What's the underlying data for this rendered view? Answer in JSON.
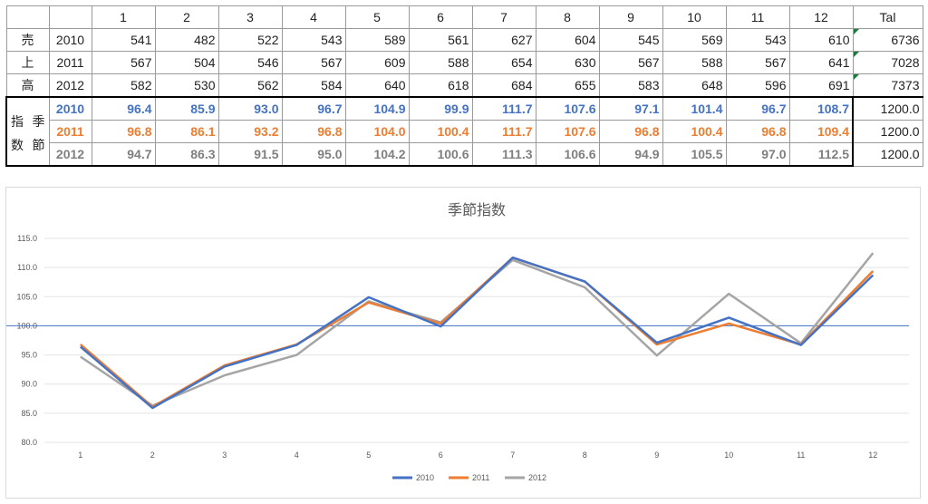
{
  "table": {
    "header": [
      "",
      "",
      "1",
      "2",
      "3",
      "4",
      "5",
      "6",
      "7",
      "8",
      "9",
      "10",
      "11",
      "12",
      "Tal"
    ],
    "sales_label_chars": [
      "売",
      "上",
      "高"
    ],
    "index_label": {
      "top": [
        "指",
        "季"
      ],
      "bottom": [
        "数",
        "節"
      ]
    },
    "sales_rows": [
      {
        "year": "2010",
        "values": [
          "541",
          "482",
          "522",
          "543",
          "589",
          "561",
          "627",
          "604",
          "545",
          "569",
          "543",
          "610"
        ],
        "total": "6736"
      },
      {
        "year": "2011",
        "values": [
          "567",
          "504",
          "546",
          "567",
          "609",
          "588",
          "654",
          "630",
          "567",
          "588",
          "567",
          "641"
        ],
        "total": "7028"
      },
      {
        "year": "2012",
        "values": [
          "582",
          "530",
          "562",
          "584",
          "640",
          "618",
          "684",
          "655",
          "583",
          "648",
          "596",
          "691"
        ],
        "total": "7373"
      }
    ],
    "index_rows": [
      {
        "year": "2010",
        "values": [
          "96.4",
          "85.9",
          "93.0",
          "96.7",
          "104.9",
          "99.9",
          "111.7",
          "107.6",
          "97.1",
          "101.4",
          "96.7",
          "108.7"
        ],
        "total": "1200.0"
      },
      {
        "year": "2011",
        "values": [
          "96.8",
          "86.1",
          "93.2",
          "96.8",
          "104.0",
          "100.4",
          "111.7",
          "107.6",
          "96.8",
          "100.4",
          "96.8",
          "109.4"
        ],
        "total": "1200.0"
      },
      {
        "year": "2012",
        "values": [
          "94.7",
          "86.3",
          "91.5",
          "95.0",
          "104.2",
          "100.6",
          "111.3",
          "106.6",
          "94.9",
          "105.5",
          "97.0",
          "112.5"
        ],
        "total": "1200.0"
      }
    ]
  },
  "chart_data": {
    "type": "line",
    "title": "季節指数",
    "categories": [
      "1",
      "2",
      "3",
      "4",
      "5",
      "6",
      "7",
      "8",
      "9",
      "10",
      "11",
      "12"
    ],
    "series": [
      {
        "name": "2010",
        "color": "#4472c4",
        "values": [
          96.4,
          85.9,
          93.0,
          96.7,
          104.9,
          99.9,
          111.7,
          107.6,
          97.1,
          101.4,
          96.7,
          108.7
        ]
      },
      {
        "name": "2011",
        "color": "#ed7d31",
        "values": [
          96.8,
          86.1,
          93.2,
          96.8,
          104.0,
          100.4,
          111.7,
          107.6,
          96.8,
          100.4,
          96.8,
          109.4
        ]
      },
      {
        "name": "2012",
        "color": "#a5a5a5",
        "values": [
          94.7,
          86.3,
          91.5,
          95.0,
          104.2,
          100.6,
          111.3,
          106.6,
          94.9,
          105.5,
          97.0,
          112.5
        ]
      }
    ],
    "ylim": [
      80,
      115
    ],
    "yticks": [
      "80.0",
      "85.0",
      "90.0",
      "95.0",
      "100.0",
      "105.0",
      "110.0",
      "115.0"
    ],
    "reference_line": {
      "value": 100,
      "color": "#4472c4"
    },
    "grid": true,
    "legend_position": "bottom"
  }
}
